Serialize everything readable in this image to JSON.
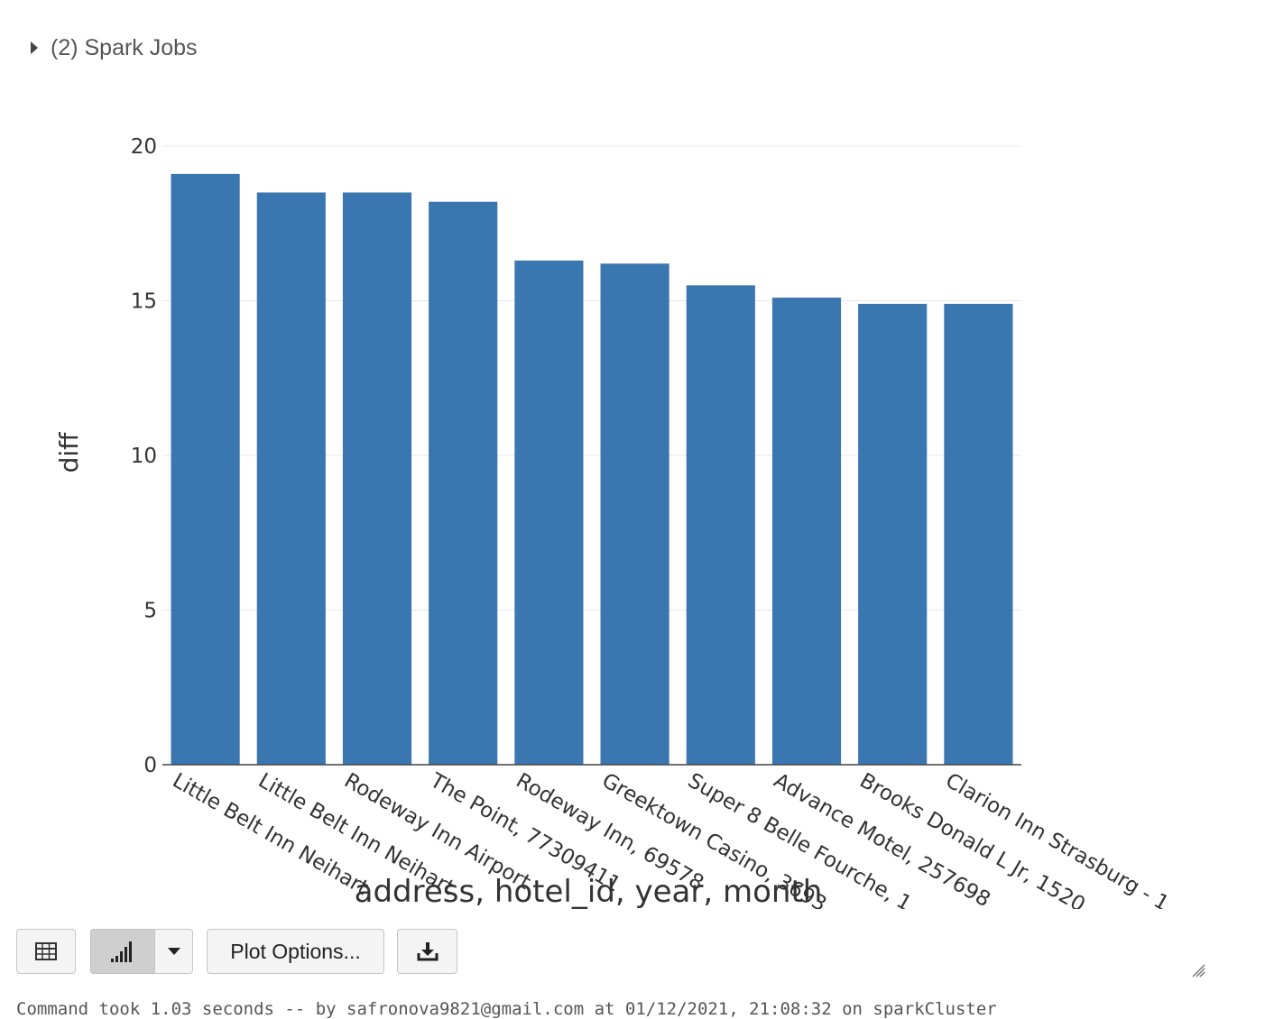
{
  "spark_jobs": {
    "label": "(2) Spark Jobs"
  },
  "chart_data": {
    "type": "bar",
    "categories": [
      "Little Belt Inn Neihart",
      "Little Belt Inn Neihart",
      "Rodeway Inn Airport",
      "The Point, 77309411",
      "Rodeway Inn, 69578",
      "Greektown Casino, 3693",
      "Super 8 Belle Fourche, 1",
      "Advance Motel, 257698",
      "Brooks Donald L Jr, 1520",
      "Clarion Inn Strasburg - 1"
    ],
    "values": [
      19.1,
      18.5,
      18.5,
      18.2,
      16.3,
      16.2,
      15.5,
      15.1,
      14.9,
      14.9
    ],
    "xlabel": "address, hotel_id, year, month",
    "ylabel": "diff",
    "ylim": [
      0,
      20
    ],
    "yticks": [
      0,
      5,
      10,
      15,
      20
    ],
    "grid": true,
    "color": "#3a76b0"
  },
  "toolbar": {
    "plot_options_label": "Plot Options...",
    "table_icon": "table-icon",
    "bar_chart_icon": "bar-chart-icon",
    "dropdown_icon": "caret-down-icon",
    "download_icon": "download-icon"
  },
  "footer": {
    "command_text": "Command took 1.03 seconds -- by safronova9821@gmail.com at 01/12/2021, 21:08:32 on sparkCluster"
  }
}
